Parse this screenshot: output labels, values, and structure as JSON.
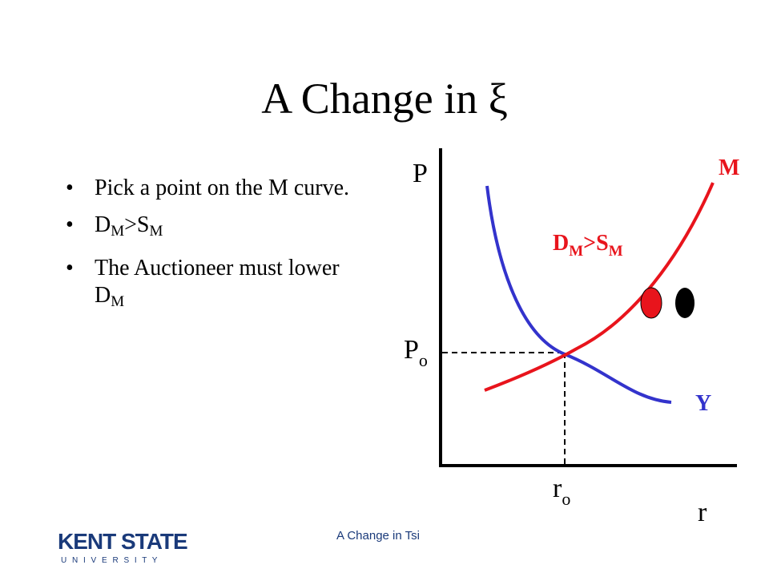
{
  "title": "A Change in ξ",
  "bullets": [
    [
      {
        "text": "Pick a point on the M curve."
      }
    ],
    [
      {
        "text": "D"
      },
      {
        "text": "M",
        "sub": true
      },
      {
        "text": ">S"
      },
      {
        "text": "M",
        "sub": true
      }
    ],
    [
      {
        "text": "The Auctioneer must lower D"
      },
      {
        "text": "M",
        "sub": true
      }
    ]
  ],
  "diagram": {
    "y_axis_label": "P",
    "x_axis_label": "r",
    "price_label": {
      "base": "P",
      "sub": "o"
    },
    "rate_label": {
      "base": "r",
      "sub": "o"
    },
    "curve_m_label": "M",
    "curve_y_label": "Y",
    "excess_label": [
      {
        "text": "D"
      },
      {
        "text": "M",
        "sub": true
      },
      {
        "text": ">S"
      },
      {
        "text": "M",
        "sub": true
      }
    ]
  },
  "footer": "A Change in Tsi",
  "logo": {
    "name": "KENT STATE",
    "tagline": "U N I V E R S I T Y"
  }
}
